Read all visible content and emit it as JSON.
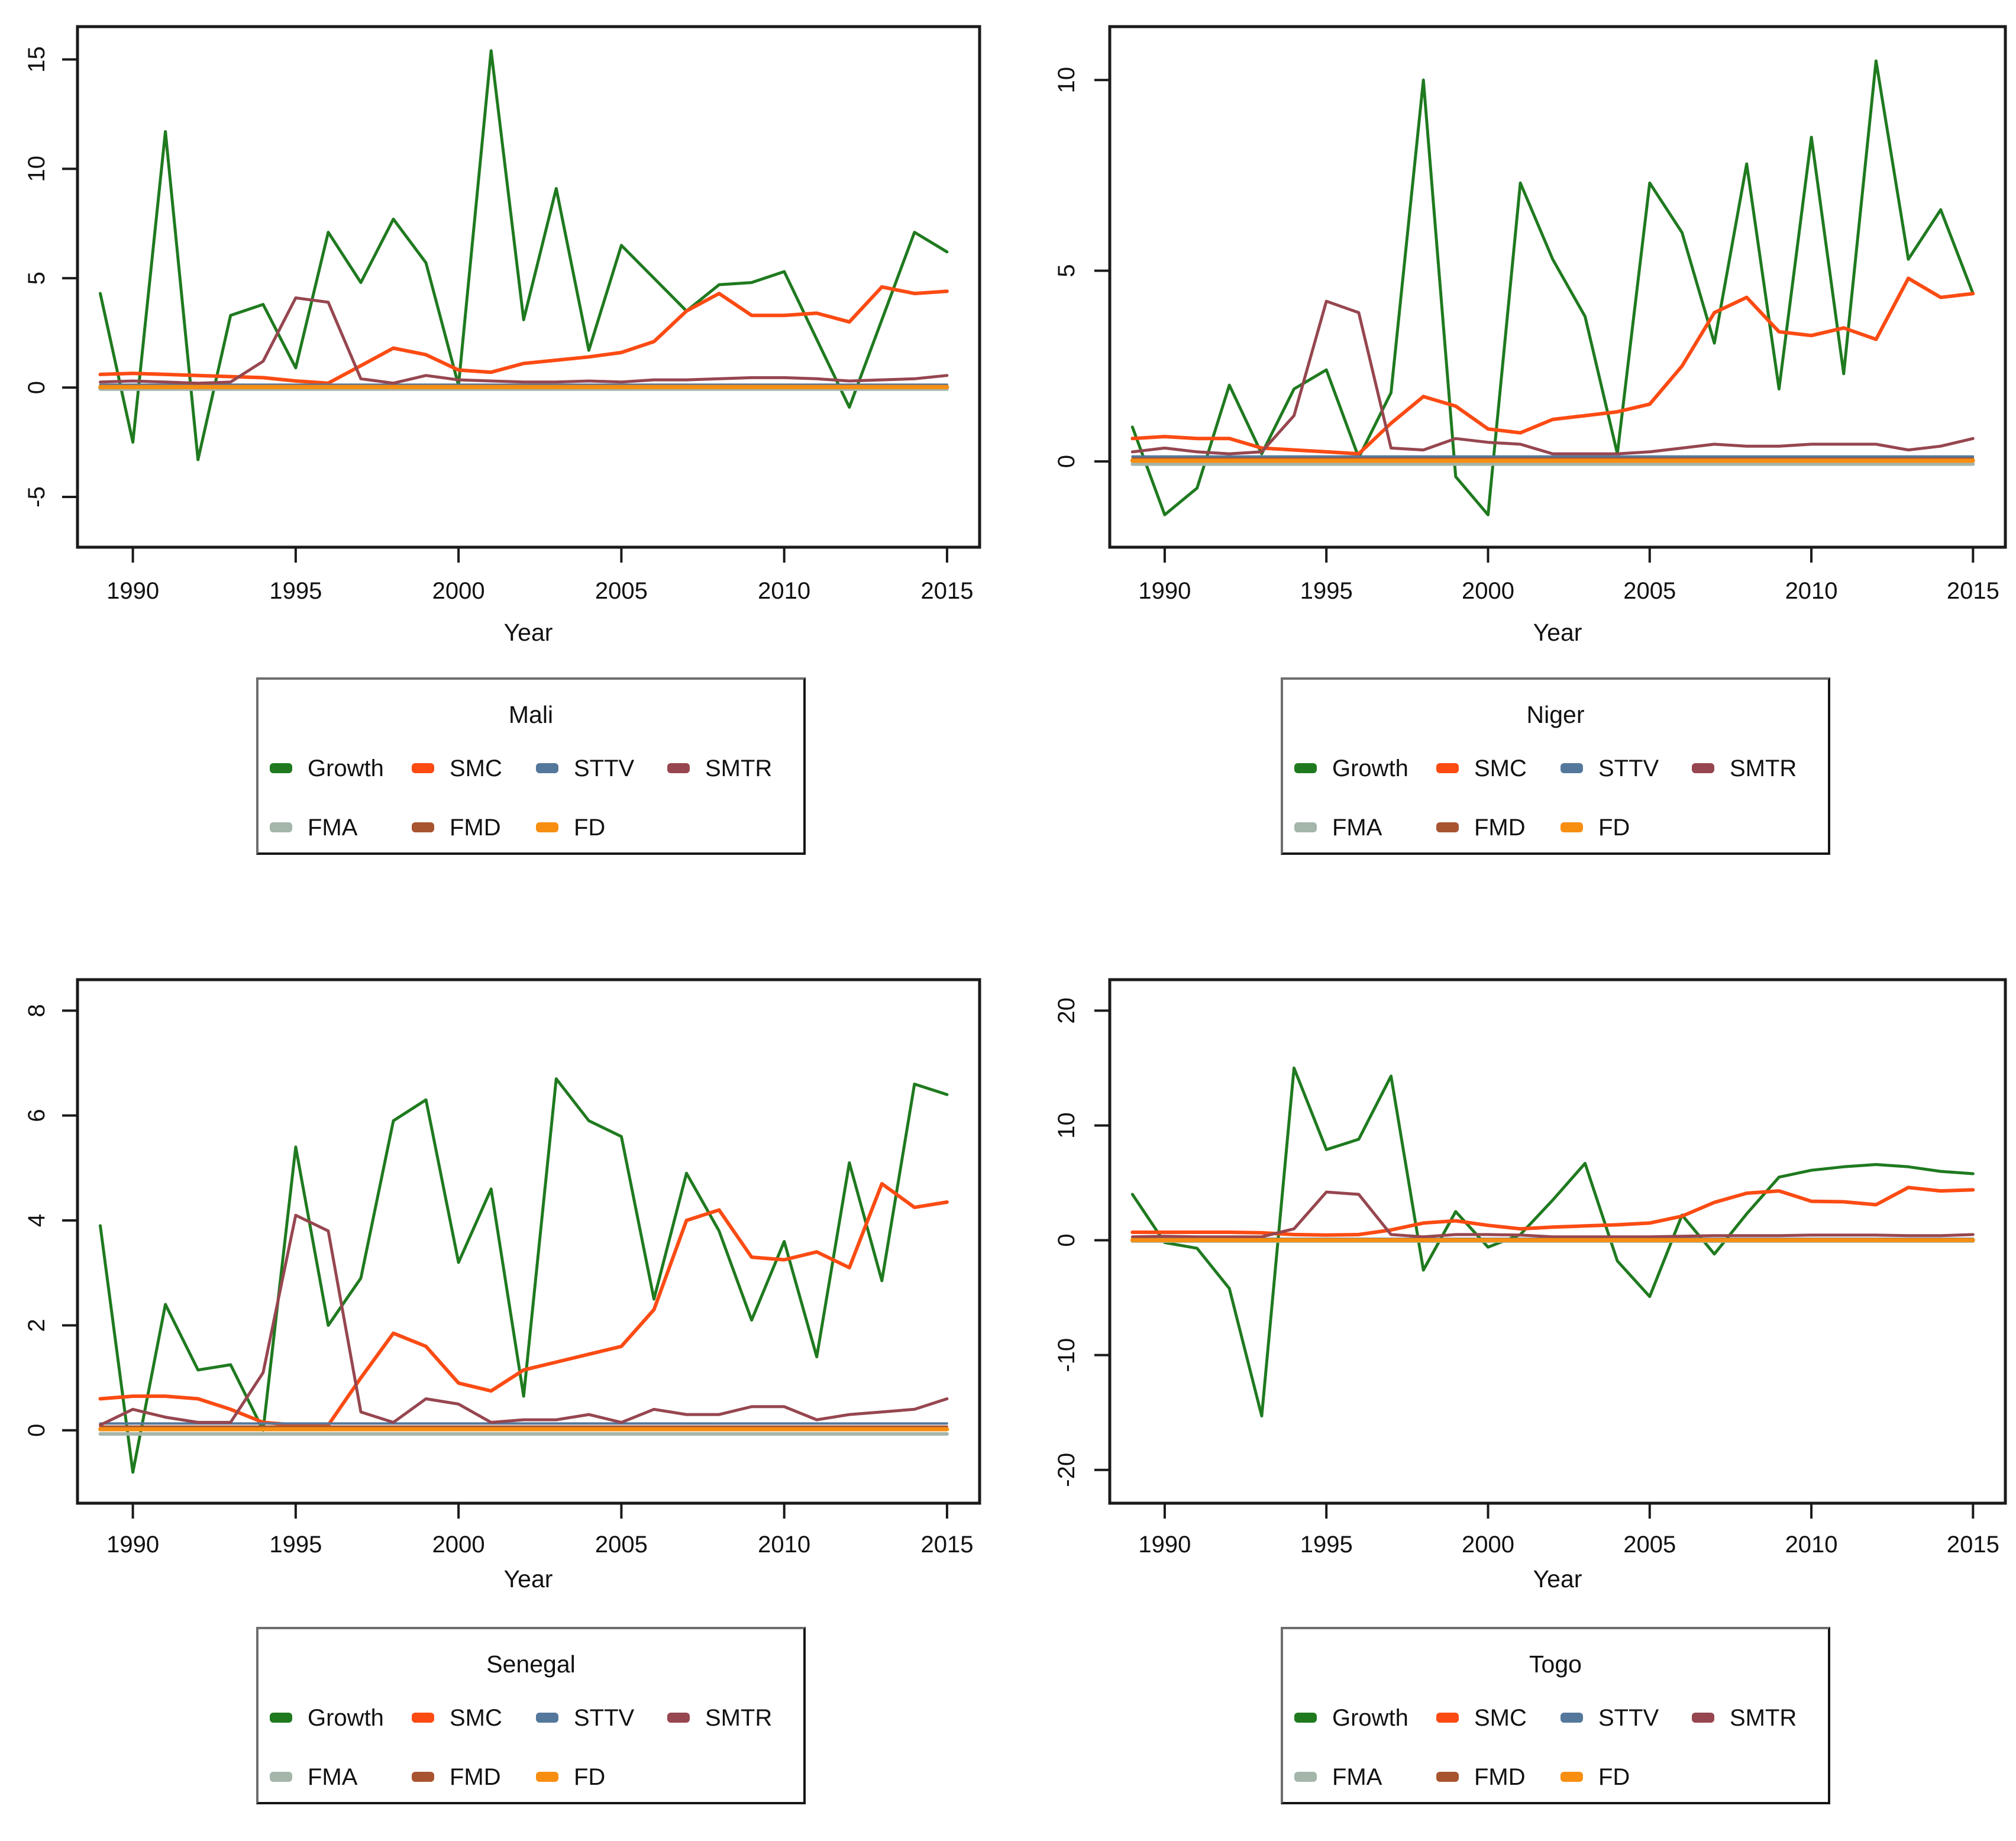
{
  "figure": {
    "background": "#ffffff",
    "text_color": "#111111",
    "axis_color": "#1a1a1a",
    "panel_layout": "2x2"
  },
  "years_range": {
    "start": 1989,
    "end": 2015
  },
  "series_styles": [
    {
      "name": "Growth",
      "color": "#1f7a1f",
      "width": 5
    },
    {
      "name": "SMC",
      "color": "#fb4b13",
      "width": 6
    },
    {
      "name": "STTV",
      "color": "#54789b",
      "width": 4
    },
    {
      "name": "SMTR",
      "color": "#96464f",
      "width": 5
    },
    {
      "name": "FMA",
      "color": "#a4b5aa",
      "width": 6
    },
    {
      "name": "FMD",
      "color": "#a85431",
      "width": 4
    },
    {
      "name": "FD",
      "color": "#f78e11",
      "width": 7
    }
  ],
  "chart_data": [
    {
      "type": "line",
      "title": "Mali",
      "legend_title": "Mali",
      "xlabel": "Year",
      "xlim": [
        1988.3,
        2016.0
      ],
      "ylim": [
        -7.3,
        16.5
      ],
      "xticks": [
        1990,
        1995,
        2000,
        2005,
        2010,
        2015
      ],
      "yticks": [
        -5,
        0,
        5,
        10,
        15
      ],
      "x_years": {
        "start": 1989,
        "end": 2015
      },
      "series": [
        {
          "name": "Growth",
          "values": [
            4.3,
            -2.5,
            11.7,
            -3.3,
            3.3,
            3.8,
            0.9,
            7.1,
            4.8,
            7.7,
            5.7,
            0.1,
            15.4,
            3.1,
            9.1,
            1.7,
            6.5,
            5.0,
            3.5,
            4.7,
            4.8,
            5.3,
            2.2,
            -0.9,
            3.1,
            7.1,
            6.2
          ]
        },
        {
          "name": "SMC",
          "values": [
            0.6,
            0.65,
            0.6,
            0.55,
            0.5,
            0.45,
            0.3,
            0.2,
            1.0,
            1.8,
            1.5,
            0.8,
            0.7,
            1.1,
            1.25,
            1.4,
            1.6,
            2.1,
            3.5,
            4.3,
            3.3,
            3.3,
            3.4,
            3.0,
            4.6,
            4.3,
            4.4
          ]
        },
        {
          "name": "STTV",
          "values": 0.13
        },
        {
          "name": "SMTR",
          "values": [
            0.25,
            0.3,
            0.25,
            0.2,
            0.25,
            1.2,
            4.1,
            3.9,
            0.4,
            0.2,
            0.55,
            0.35,
            0.3,
            0.25,
            0.25,
            0.3,
            0.25,
            0.35,
            0.35,
            0.4,
            0.45,
            0.45,
            0.4,
            0.3,
            0.35,
            0.4,
            0.55
          ]
        },
        {
          "name": "FMA",
          "values": -0.07
        },
        {
          "name": "FMD",
          "values": 0.07
        },
        {
          "name": "FD",
          "values": 0.02
        }
      ]
    },
    {
      "type": "line",
      "title": "Niger",
      "legend_title": "Niger",
      "xlabel": "Year",
      "xlim": [
        1988.3,
        2016.0
      ],
      "ylim": [
        -2.25,
        11.4
      ],
      "xticks": [
        1990,
        1995,
        2000,
        2005,
        2010,
        2015
      ],
      "yticks": [
        0,
        5,
        10
      ],
      "x_years": {
        "start": 1989,
        "end": 2015
      },
      "series": [
        {
          "name": "Growth",
          "values": [
            0.9,
            -1.4,
            -0.7,
            2.0,
            0.2,
            1.9,
            2.4,
            0.1,
            1.8,
            10.0,
            -0.4,
            -1.4,
            7.3,
            5.3,
            3.8,
            0.2,
            7.3,
            6.0,
            3.1,
            7.8,
            1.9,
            8.5,
            2.3,
            10.5,
            5.3,
            6.6,
            4.4
          ]
        },
        {
          "name": "SMC",
          "values": [
            0.6,
            0.65,
            0.6,
            0.6,
            0.35,
            0.3,
            0.25,
            0.2,
            1.0,
            1.7,
            1.45,
            0.85,
            0.75,
            1.1,
            1.2,
            1.3,
            1.5,
            2.5,
            3.9,
            4.3,
            3.4,
            3.3,
            3.5,
            3.2,
            4.8,
            4.3,
            4.4
          ]
        },
        {
          "name": "STTV",
          "values": 0.13
        },
        {
          "name": "SMTR",
          "values": [
            0.25,
            0.35,
            0.25,
            0.2,
            0.25,
            1.2,
            4.2,
            3.9,
            0.35,
            0.3,
            0.6,
            0.5,
            0.45,
            0.2,
            0.2,
            0.2,
            0.25,
            0.35,
            0.45,
            0.4,
            0.4,
            0.45,
            0.45,
            0.45,
            0.3,
            0.4,
            0.6
          ]
        },
        {
          "name": "FMA",
          "values": -0.07
        },
        {
          "name": "FMD",
          "values": 0.07
        },
        {
          "name": "FD",
          "values": 0.02
        }
      ]
    },
    {
      "type": "line",
      "title": "Senegal",
      "legend_title": "Senegal",
      "xlabel": "Year",
      "xlim": [
        1988.3,
        2016.0
      ],
      "ylim": [
        -1.39,
        8.59
      ],
      "xticks": [
        1990,
        1995,
        2000,
        2005,
        2010,
        2015
      ],
      "yticks": [
        0,
        2,
        4,
        6,
        8
      ],
      "x_years": {
        "start": 1989,
        "end": 2015
      },
      "series": [
        {
          "name": "Growth",
          "values": [
            3.9,
            -0.8,
            2.4,
            1.15,
            1.25,
            0.0,
            5.4,
            2.0,
            2.9,
            5.9,
            6.3,
            3.2,
            4.6,
            0.65,
            6.7,
            5.9,
            5.6,
            2.5,
            4.9,
            3.8,
            2.1,
            3.6,
            1.4,
            5.1,
            2.85,
            6.6,
            6.4
          ]
        },
        {
          "name": "SMC",
          "values": [
            0.6,
            0.65,
            0.65,
            0.6,
            0.4,
            0.15,
            0.1,
            0.1,
            1.0,
            1.85,
            1.6,
            0.9,
            0.75,
            1.15,
            1.3,
            1.45,
            1.6,
            2.3,
            4.0,
            4.2,
            3.3,
            3.25,
            3.4,
            3.1,
            4.7,
            4.25,
            4.35
          ]
        },
        {
          "name": "STTV",
          "values": 0.13
        },
        {
          "name": "SMTR",
          "values": [
            0.1,
            0.4,
            0.25,
            0.15,
            0.15,
            1.1,
            4.1,
            3.8,
            0.35,
            0.15,
            0.6,
            0.5,
            0.15,
            0.2,
            0.2,
            0.3,
            0.15,
            0.4,
            0.3,
            0.3,
            0.45,
            0.45,
            0.2,
            0.3,
            0.35,
            0.4,
            0.6
          ]
        },
        {
          "name": "FMA",
          "values": -0.07
        },
        {
          "name": "FMD",
          "values": 0.07
        },
        {
          "name": "FD",
          "values": 0.02
        }
      ]
    },
    {
      "type": "line",
      "title": "Togo",
      "legend_title": "Togo",
      "xlabel": "Year",
      "xlim": [
        1988.3,
        2016.0
      ],
      "ylim": [
        -22.9,
        22.7
      ],
      "xticks": [
        1990,
        1995,
        2000,
        2005,
        2010,
        2015
      ],
      "yticks": [
        -20,
        -10,
        0,
        10,
        20
      ],
      "x_years": {
        "start": 1989,
        "end": 2015
      },
      "series": [
        {
          "name": "Growth",
          "values": [
            4.0,
            -0.2,
            -0.7,
            -4.2,
            -15.3,
            15.0,
            7.9,
            8.8,
            14.3,
            -2.6,
            2.5,
            -0.6,
            0.5,
            3.5,
            6.7,
            -1.8,
            -4.9,
            2.2,
            -1.2,
            2.3,
            5.5,
            6.1,
            6.4,
            6.6,
            6.4,
            6.0,
            5.8
          ]
        },
        {
          "name": "SMC",
          "values": [
            0.7,
            0.7,
            0.7,
            0.7,
            0.65,
            0.5,
            0.45,
            0.5,
            0.9,
            1.5,
            1.7,
            1.3,
            1.0,
            1.15,
            1.25,
            1.35,
            1.5,
            2.1,
            3.3,
            4.1,
            4.3,
            3.4,
            3.35,
            3.1,
            4.6,
            4.3,
            4.4
          ]
        },
        {
          "name": "STTV",
          "values": 0.13
        },
        {
          "name": "SMTR",
          "values": [
            0.3,
            0.35,
            0.3,
            0.3,
            0.3,
            1.0,
            4.2,
            4.0,
            0.5,
            0.3,
            0.5,
            0.5,
            0.45,
            0.3,
            0.3,
            0.3,
            0.3,
            0.35,
            0.4,
            0.4,
            0.4,
            0.45,
            0.45,
            0.45,
            0.4,
            0.4,
            0.5
          ]
        },
        {
          "name": "FMA",
          "values": -0.07
        },
        {
          "name": "FMD",
          "values": 0.07
        },
        {
          "name": "FD",
          "values": 0.02
        }
      ]
    }
  ]
}
